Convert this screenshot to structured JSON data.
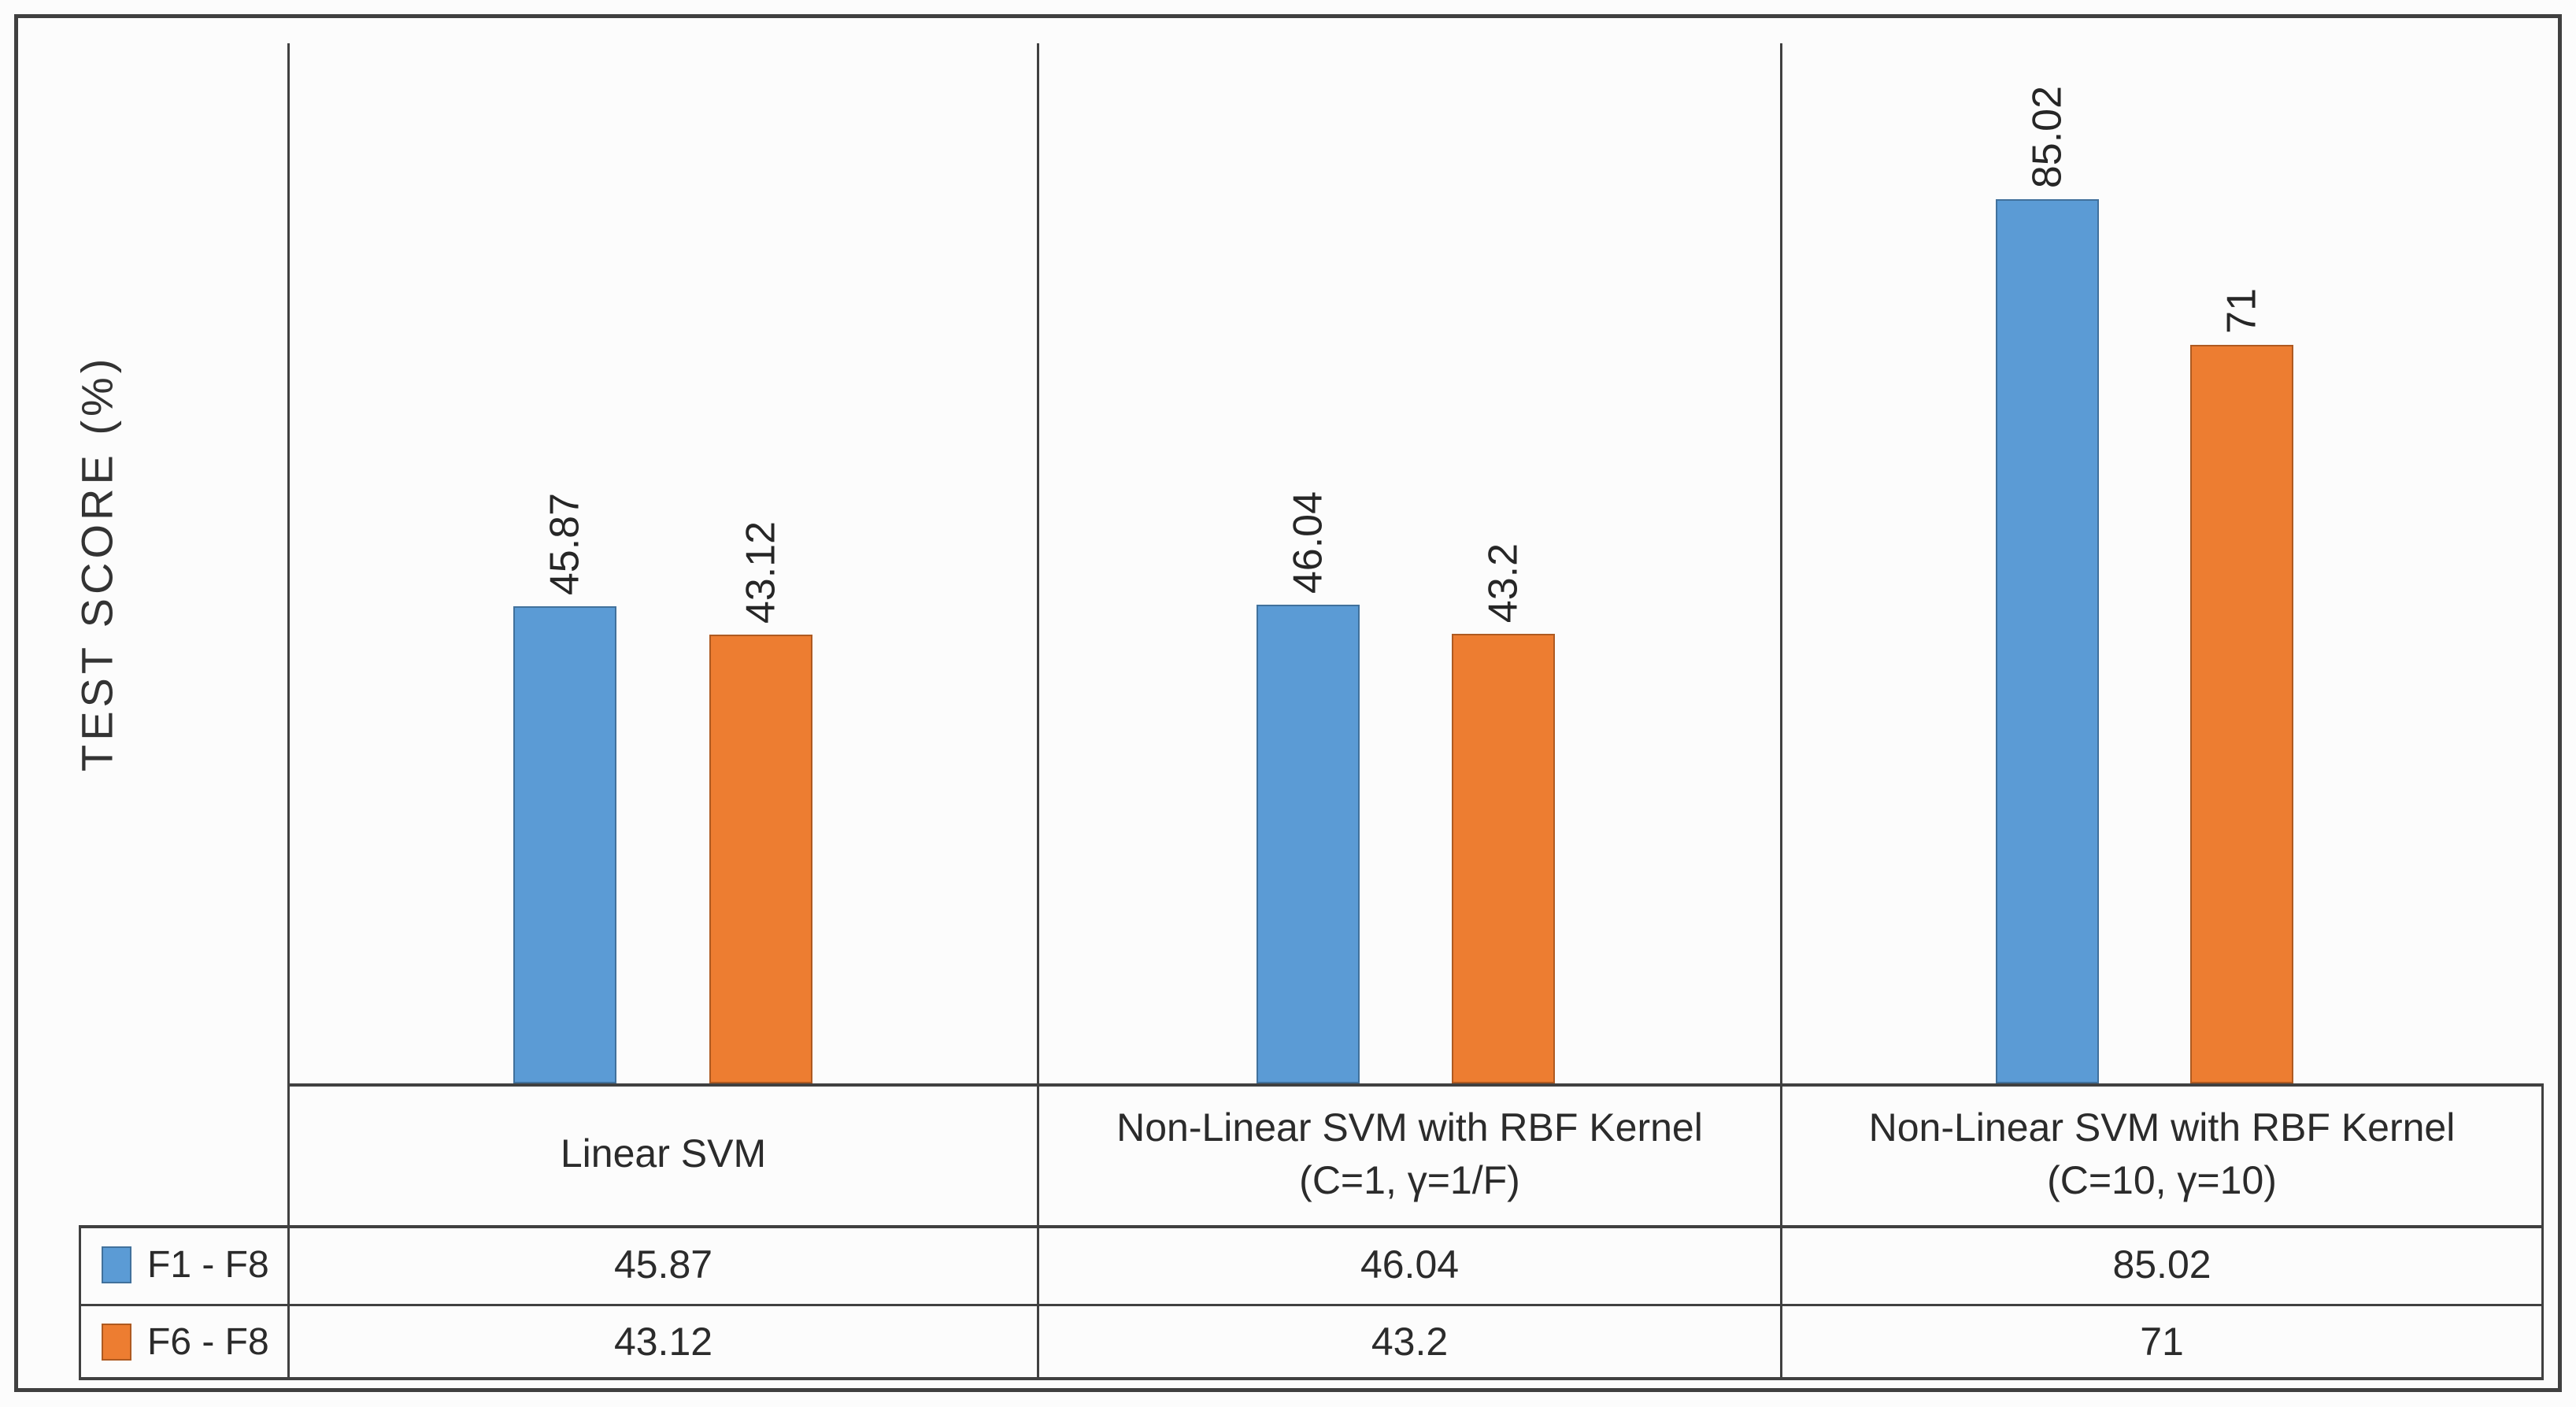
{
  "figure": {
    "background": "#fcfcfc",
    "frame_color": "#404040",
    "text_color": "#262626"
  },
  "chart_data": {
    "type": "bar",
    "title": "",
    "xlabel": "",
    "ylabel": "TEST SCORE (%)",
    "ylim": [
      0,
      100
    ],
    "grid": false,
    "legend_position": "table-left",
    "categories": [
      "Linear SVM",
      "Non-Linear SVM with RBF Kernel (C=1, γ=1/F)",
      "Non-Linear SVM with RBF Kernel (C=10, γ=10)"
    ],
    "category_lines": [
      [
        "Linear SVM",
        ""
      ],
      [
        "Non-Linear SVM with RBF Kernel",
        "(C=1, γ=1/F)"
      ],
      [
        "Non-Linear SVM with RBF Kernel",
        "(C=10, γ=10)"
      ]
    ],
    "series": [
      {
        "name": "F1 - F8",
        "color": "#5B9BD5",
        "edge_color": "#41719C",
        "values": [
          45.87,
          46.04,
          85.02
        ]
      },
      {
        "name": "F6 - F8",
        "color": "#ED7D31",
        "edge_color": "#AE5A21",
        "values": [
          43.12,
          43.2,
          71
        ]
      }
    ]
  }
}
